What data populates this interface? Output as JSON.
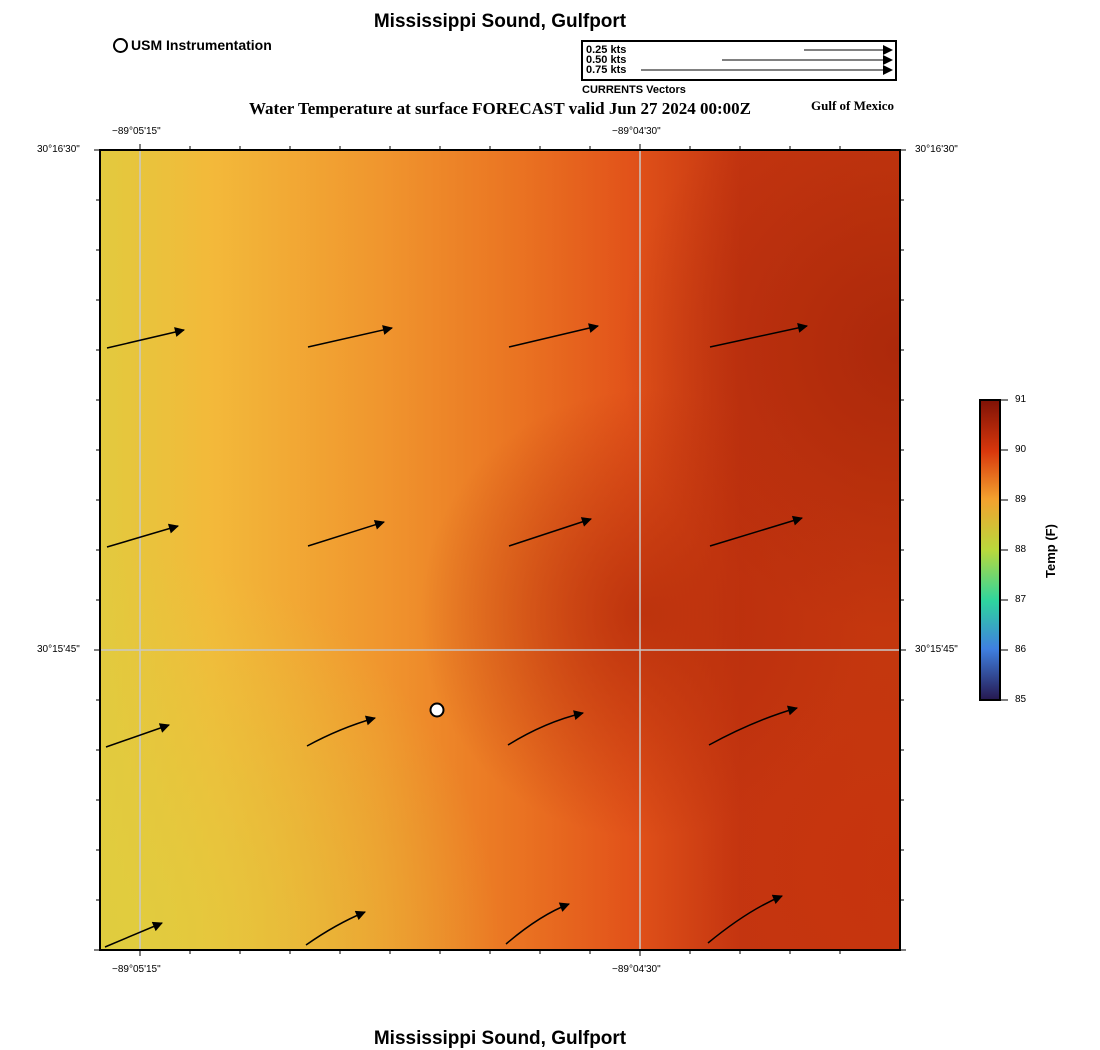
{
  "title": "Mississippi Sound, Gulfport",
  "footer_title": "Mississippi Sound, Gulfport",
  "legend": {
    "usm_label": "USM Instrumentation"
  },
  "vector_legend": {
    "labels": [
      "0.25 kts",
      "0.50 kts",
      "0.75 kts"
    ],
    "caption": "CURRENTS Vectors"
  },
  "subtitle": "Water Temperature at surface FORECAST valid Jun 27 2024 00:00Z",
  "region_label": "Gulf of Mexico",
  "axes": {
    "lon_ticks": [
      "−89°05'15\"",
      "−89°04'30\""
    ],
    "lat_ticks": [
      "30°16'30\"",
      "30°15'45\""
    ]
  },
  "colorbar": {
    "title": "Temp (F)",
    "ticks": [
      "91",
      "90",
      "89",
      "88",
      "87",
      "86",
      "85"
    ],
    "colors": [
      "#8a1508",
      "#d93a0c",
      "#f59a2e",
      "#e4cf3a",
      "#8fd24a",
      "#2fcf9a",
      "#3f7fe0",
      "#2a1a5c"
    ]
  },
  "field_colors": [
    "#e3cd3c",
    "#f6b63a",
    "#ee8c2a",
    "#e55515",
    "#b92e0a"
  ],
  "currents_direction": "east-northeast"
}
